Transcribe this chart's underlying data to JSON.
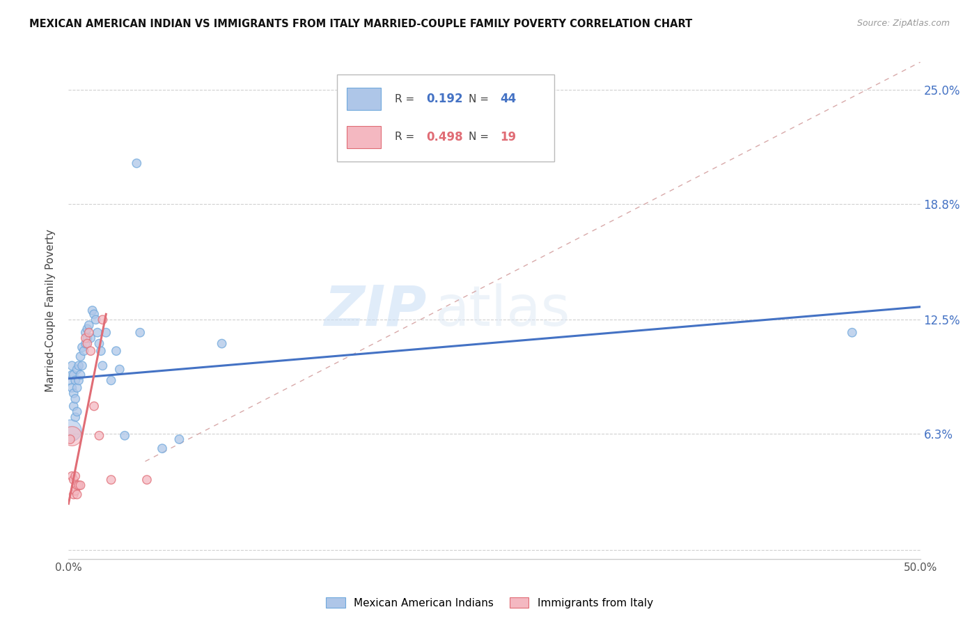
{
  "title": "MEXICAN AMERICAN INDIAN VS IMMIGRANTS FROM ITALY MARRIED-COUPLE FAMILY POVERTY CORRELATION CHART",
  "source": "Source: ZipAtlas.com",
  "ylabel": "Married-Couple Family Poverty",
  "xlim": [
    0,
    0.5
  ],
  "ylim": [
    -0.005,
    0.265
  ],
  "yticks": [
    0.0,
    0.063,
    0.125,
    0.188,
    0.25
  ],
  "ytick_labels": [
    "",
    "6.3%",
    "12.5%",
    "18.8%",
    "25.0%"
  ],
  "xticks": [
    0.0,
    0.1,
    0.2,
    0.3,
    0.4,
    0.5
  ],
  "xtick_labels": [
    "0.0%",
    "",
    "",
    "",
    "",
    "50.0%"
  ],
  "watermark_zip": "ZIP",
  "watermark_atlas": "atlas",
  "legend1_label": "Mexican American Indians",
  "legend2_label": "Immigrants from Italy",
  "R1": 0.192,
  "N1": 44,
  "R2": 0.498,
  "N2": 19,
  "blue_fill": "#aec6e8",
  "blue_edge": "#6fa8dc",
  "pink_fill": "#f4b8c1",
  "pink_edge": "#e06c75",
  "blue_line_color": "#4472c4",
  "pink_line_color": "#e06c75",
  "diag_line_color": "#d4a0a0",
  "grid_color": "#d0d0d0",
  "blue_scatter": [
    [
      0.001,
      0.092
    ],
    [
      0.002,
      0.088
    ],
    [
      0.002,
      0.1
    ],
    [
      0.002,
      0.095
    ],
    [
      0.003,
      0.085
    ],
    [
      0.003,
      0.095
    ],
    [
      0.003,
      0.078
    ],
    [
      0.004,
      0.092
    ],
    [
      0.004,
      0.082
    ],
    [
      0.004,
      0.072
    ],
    [
      0.005,
      0.098
    ],
    [
      0.005,
      0.088
    ],
    [
      0.005,
      0.075
    ],
    [
      0.006,
      0.092
    ],
    [
      0.006,
      0.1
    ],
    [
      0.007,
      0.105
    ],
    [
      0.007,
      0.095
    ],
    [
      0.008,
      0.11
    ],
    [
      0.008,
      0.1
    ],
    [
      0.009,
      0.108
    ],
    [
      0.01,
      0.118
    ],
    [
      0.01,
      0.112
    ],
    [
      0.011,
      0.12
    ],
    [
      0.011,
      0.115
    ],
    [
      0.012,
      0.122
    ],
    [
      0.013,
      0.115
    ],
    [
      0.014,
      0.13
    ],
    [
      0.015,
      0.128
    ],
    [
      0.016,
      0.125
    ],
    [
      0.017,
      0.118
    ],
    [
      0.018,
      0.112
    ],
    [
      0.019,
      0.108
    ],
    [
      0.02,
      0.1
    ],
    [
      0.022,
      0.118
    ],
    [
      0.025,
      0.092
    ],
    [
      0.028,
      0.108
    ],
    [
      0.03,
      0.098
    ],
    [
      0.033,
      0.062
    ],
    [
      0.04,
      0.21
    ],
    [
      0.042,
      0.118
    ],
    [
      0.055,
      0.055
    ],
    [
      0.065,
      0.06
    ],
    [
      0.09,
      0.112
    ],
    [
      0.46,
      0.118
    ]
  ],
  "pink_scatter": [
    [
      0.001,
      0.06
    ],
    [
      0.002,
      0.04
    ],
    [
      0.003,
      0.038
    ],
    [
      0.003,
      0.03
    ],
    [
      0.004,
      0.04
    ],
    [
      0.004,
      0.032
    ],
    [
      0.005,
      0.035
    ],
    [
      0.005,
      0.03
    ],
    [
      0.006,
      0.035
    ],
    [
      0.007,
      0.035
    ],
    [
      0.01,
      0.115
    ],
    [
      0.011,
      0.112
    ],
    [
      0.012,
      0.118
    ],
    [
      0.013,
      0.108
    ],
    [
      0.015,
      0.078
    ],
    [
      0.018,
      0.062
    ],
    [
      0.02,
      0.125
    ],
    [
      0.025,
      0.038
    ],
    [
      0.046,
      0.038
    ]
  ],
  "blue_dot_sizes": [
    80,
    80,
    80,
    80,
    80,
    80,
    80,
    80,
    80,
    80,
    80,
    80,
    80,
    80,
    80,
    80,
    80,
    80,
    80,
    80,
    80,
    80,
    80,
    80,
    80,
    80,
    80,
    80,
    80,
    80,
    80,
    80,
    80,
    80,
    80,
    80,
    80,
    80,
    80,
    80,
    80,
    80,
    80,
    80
  ],
  "large_blue_dot_index": 0,
  "pink_dot_sizes": [
    80,
    80,
    80,
    80,
    80,
    80,
    80,
    80,
    80,
    80,
    80,
    80,
    80,
    80,
    80,
    80,
    80,
    80,
    80
  ],
  "large_pink_dot_index": 0,
  "blue_line_x": [
    0.0,
    0.5
  ],
  "blue_line_y": [
    0.093,
    0.132
  ],
  "pink_line_x": [
    0.0,
    0.022
  ],
  "pink_line_y": [
    0.025,
    0.128
  ],
  "diag_line_x": [
    0.045,
    0.5
  ],
  "diag_line_y": [
    0.048,
    0.265
  ]
}
